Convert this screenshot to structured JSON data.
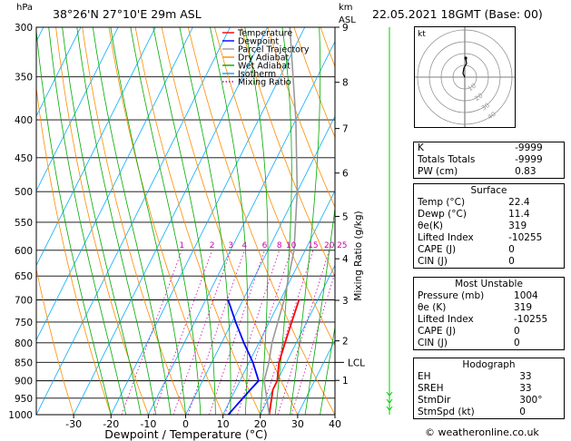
{
  "header": {
    "hpa": "hPa",
    "location": "38°26'N  27°10'E  29m  ASL",
    "km": "km",
    "asl": "ASL",
    "date": "22.05.2021  18GMT  (Base: 00)"
  },
  "legend": [
    {
      "name": "Temperature",
      "color": "#ff0000",
      "style": "solid"
    },
    {
      "name": "Dewpoint",
      "color": "#0000ff",
      "style": "solid"
    },
    {
      "name": "Parcel Trajectory",
      "color": "#999999",
      "style": "solid"
    },
    {
      "name": "Dry Adiabat",
      "color": "#ff8c00",
      "style": "solid"
    },
    {
      "name": "Wet Adiabat",
      "color": "#00aa00",
      "style": "solid"
    },
    {
      "name": "Isotherm",
      "color": "#00aaff",
      "style": "solid"
    },
    {
      "name": "Mixing Ratio",
      "color": "#cc00aa",
      "style": "dotted"
    }
  ],
  "chart_data": {
    "type": "line",
    "xlabel": "Dewpoint / Temperature (°C)",
    "mixing_ratio_axis_label": "Mixing Ratio (g/kg)",
    "pressure_levels": [
      300,
      350,
      400,
      450,
      500,
      550,
      600,
      650,
      700,
      750,
      800,
      850,
      900,
      950,
      1000
    ],
    "x_ticks": [
      -30,
      -20,
      -10,
      0,
      10,
      20,
      30,
      40
    ],
    "xlim": [
      -40,
      40
    ],
    "mixing_ratio_labels": [
      "1",
      "2",
      "3",
      "4",
      "6",
      "8",
      "10",
      "15",
      "20",
      "25"
    ],
    "km_labels": [
      {
        "label": "9",
        "p": 300
      },
      {
        "label": "8",
        "p": 356
      },
      {
        "label": "7",
        "p": 411
      },
      {
        "label": "6",
        "p": 472
      },
      {
        "label": "5",
        "p": 540
      },
      {
        "label": "4",
        "p": 616
      },
      {
        "label": "3",
        "p": 701
      },
      {
        "label": "2",
        "p": 795
      },
      {
        "label": "1",
        "p": 899
      }
    ],
    "lcl": {
      "label": "LCL",
      "p": 850
    },
    "series": [
      {
        "name": "Temperature",
        "color": "#ff0000",
        "points": [
          [
            22.4,
            1000
          ],
          [
            20,
            925
          ],
          [
            20,
            900
          ],
          [
            18,
            850
          ],
          [
            17,
            800
          ],
          [
            16,
            750
          ],
          [
            15,
            700
          ]
        ]
      },
      {
        "name": "Dewpoint",
        "color": "#0000ff",
        "points": [
          [
            11.4,
            1000
          ],
          [
            14,
            925
          ],
          [
            15,
            900
          ],
          [
            11,
            850
          ],
          [
            6,
            800
          ],
          [
            1,
            750
          ],
          [
            -4,
            700
          ]
        ]
      },
      {
        "name": "Parcel Trajectory",
        "color": "#999999",
        "points": [
          [
            22.4,
            1000
          ],
          [
            16.5,
            900
          ],
          [
            15.3,
            850
          ],
          [
            13.5,
            800
          ],
          [
            11,
            700
          ],
          [
            7,
            600
          ],
          [
            0,
            500
          ],
          [
            -10,
            400
          ],
          [
            -24,
            300
          ]
        ]
      }
    ]
  },
  "hodograph": {
    "label": "kt",
    "ring_labels": [
      "10",
      "20",
      "30",
      "40"
    ]
  },
  "indices": {
    "rows": [
      {
        "label": "K",
        "value": "-9999"
      },
      {
        "label": "Totals Totals",
        "value": "-9999"
      },
      {
        "label": "PW (cm)",
        "value": "0.83"
      }
    ]
  },
  "surface": {
    "title": "Surface",
    "rows": [
      {
        "label": "Temp (°C)",
        "value": "22.4"
      },
      {
        "label": "Dewp (°C)",
        "value": "11.4"
      },
      {
        "label": "θe(K)",
        "value": "319"
      },
      {
        "label": "Lifted Index",
        "value": "-10255"
      },
      {
        "label": "CAPE (J)",
        "value": "0"
      },
      {
        "label": "CIN (J)",
        "value": "0"
      }
    ]
  },
  "most_unstable": {
    "title": "Most Unstable",
    "rows": [
      {
        "label": "Pressure (mb)",
        "value": "1004"
      },
      {
        "label": "θe (K)",
        "value": "319"
      },
      {
        "label": "Lifted Index",
        "value": "-10255"
      },
      {
        "label": "CAPE (J)",
        "value": "0"
      },
      {
        "label": "CIN (J)",
        "value": "0"
      }
    ]
  },
  "hodograph_table": {
    "title": "Hodograph",
    "rows": [
      {
        "label": "EH",
        "value": "33"
      },
      {
        "label": "SREH",
        "value": "33"
      },
      {
        "label": "StmDir",
        "value": "300°"
      },
      {
        "label": "StmSpd (kt)",
        "value": "0"
      }
    ]
  },
  "credit": "© weatheronline.co.uk"
}
